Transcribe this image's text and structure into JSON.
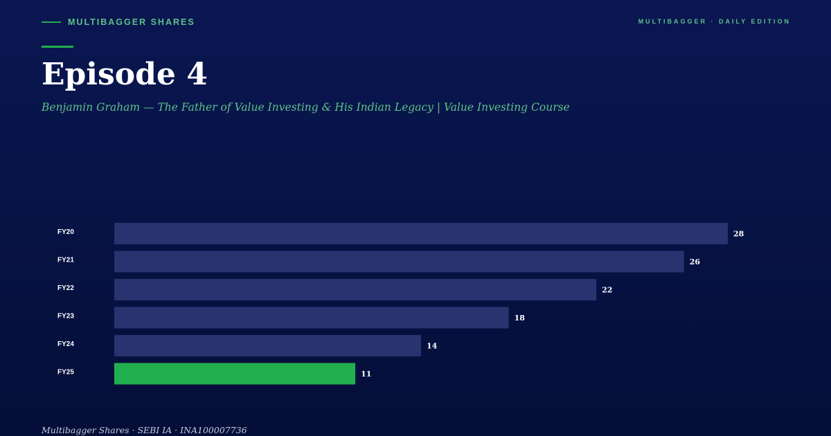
{
  "header": {
    "brand": "MULTIBAGGER SHARES",
    "edition": "MULTIBAGGER · DAILY EDITION"
  },
  "title": "Episode 4",
  "subtitle": "Benjamin Graham — The Father of Value Investing & His Indian Legacy | Value Investing Course",
  "footer": "Multibagger Shares · SEBI IA · INA100007736",
  "colors": {
    "background": "#071345",
    "accent": "#22b04e",
    "bar": "#283370",
    "highlight_bar": "#22b04e",
    "accent_text": "#5fc088"
  },
  "chart_data": {
    "type": "bar",
    "orientation": "horizontal",
    "categories": [
      "FY20",
      "FY21",
      "FY22",
      "FY23",
      "FY24",
      "FY25"
    ],
    "values": [
      28,
      26,
      22,
      18,
      14,
      11
    ],
    "highlight": "FY25",
    "title": "",
    "xlabel": "",
    "ylabel": "",
    "xlim": [
      0,
      28
    ],
    "grid": false,
    "legend": "none"
  }
}
